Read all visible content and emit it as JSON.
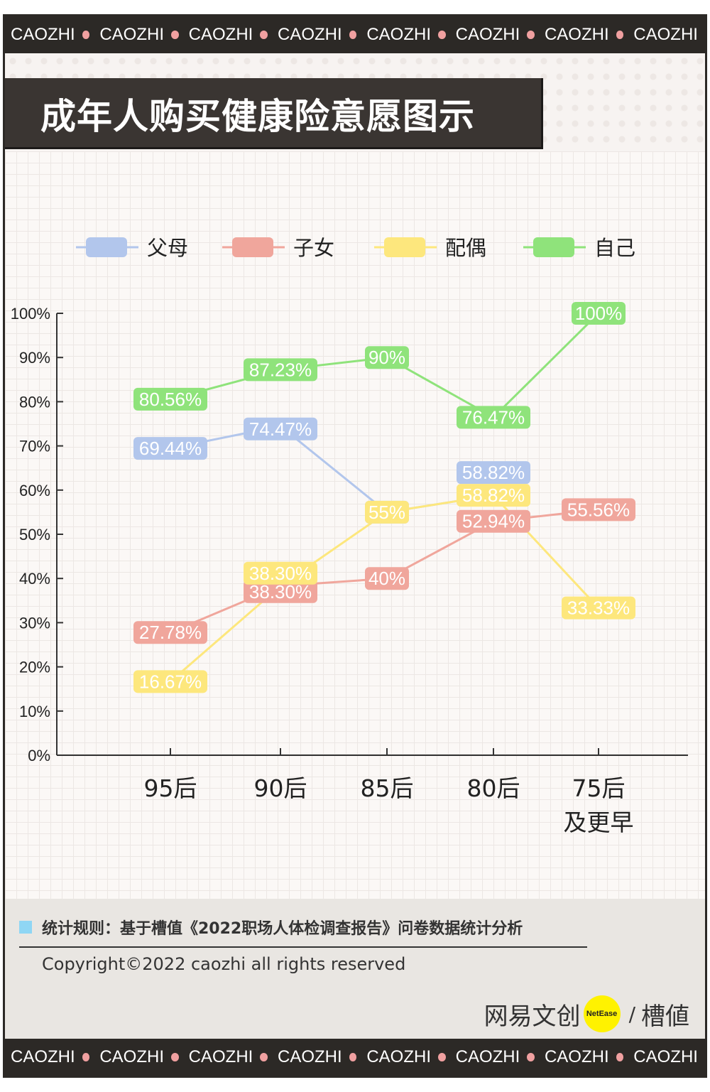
{
  "ticker": {
    "word": "CAOZHI",
    "dot_color": "#f0a0a0",
    "repeat": 8
  },
  "header": {
    "title": "成年人购买健康险意愿图示"
  },
  "chart_data": {
    "type": "line",
    "title": "成年人购买健康险意愿图示",
    "categories": [
      "95后",
      "90后",
      "85后",
      "80后",
      "75后\n及更早"
    ],
    "ylim": [
      0,
      100
    ],
    "yticks": [
      0,
      10,
      20,
      30,
      40,
      50,
      60,
      70,
      80,
      90,
      100
    ],
    "ytick_labels": [
      "0%",
      "10%",
      "20%",
      "30%",
      "40%",
      "50%",
      "60%",
      "70%",
      "80%",
      "90%",
      "100%"
    ],
    "legend_position": "top",
    "grid": true,
    "series": [
      {
        "name": "父母",
        "color": "#b2c6ec",
        "values": [
          69.44,
          74.47,
          55,
          58.82,
          null
        ],
        "labels": [
          "69.44%",
          "74.47%",
          "55%",
          "58.82%",
          null
        ]
      },
      {
        "name": "子女",
        "color": "#f0a69c",
        "values": [
          27.78,
          38.3,
          40,
          52.94,
          55.56
        ],
        "labels": [
          "27.78%",
          "38.30%",
          "40%",
          "52.94%",
          "55.56%"
        ]
      },
      {
        "name": "配偶",
        "color": "#fde77d",
        "values": [
          16.67,
          38.3,
          55,
          58.82,
          33.33
        ],
        "labels": [
          "16.67%",
          "38.30%",
          "55%",
          "58.82%",
          "33.33%"
        ]
      },
      {
        "name": "自己",
        "color": "#8fe37b",
        "values": [
          80.56,
          87.23,
          90,
          76.47,
          100
        ],
        "labels": [
          "80.56%",
          "87.23%",
          "90%",
          "76.47%",
          "100%"
        ]
      }
    ]
  },
  "footer": {
    "rule": "统计规则：基于槽值《2022职场人体检调查报告》问卷数据统计分析",
    "copyright": "Copyright©2022 caozhi all rights reserved",
    "brand_left": "网易文创",
    "brand_badge": "NetEase",
    "brand_right": "槽値"
  }
}
